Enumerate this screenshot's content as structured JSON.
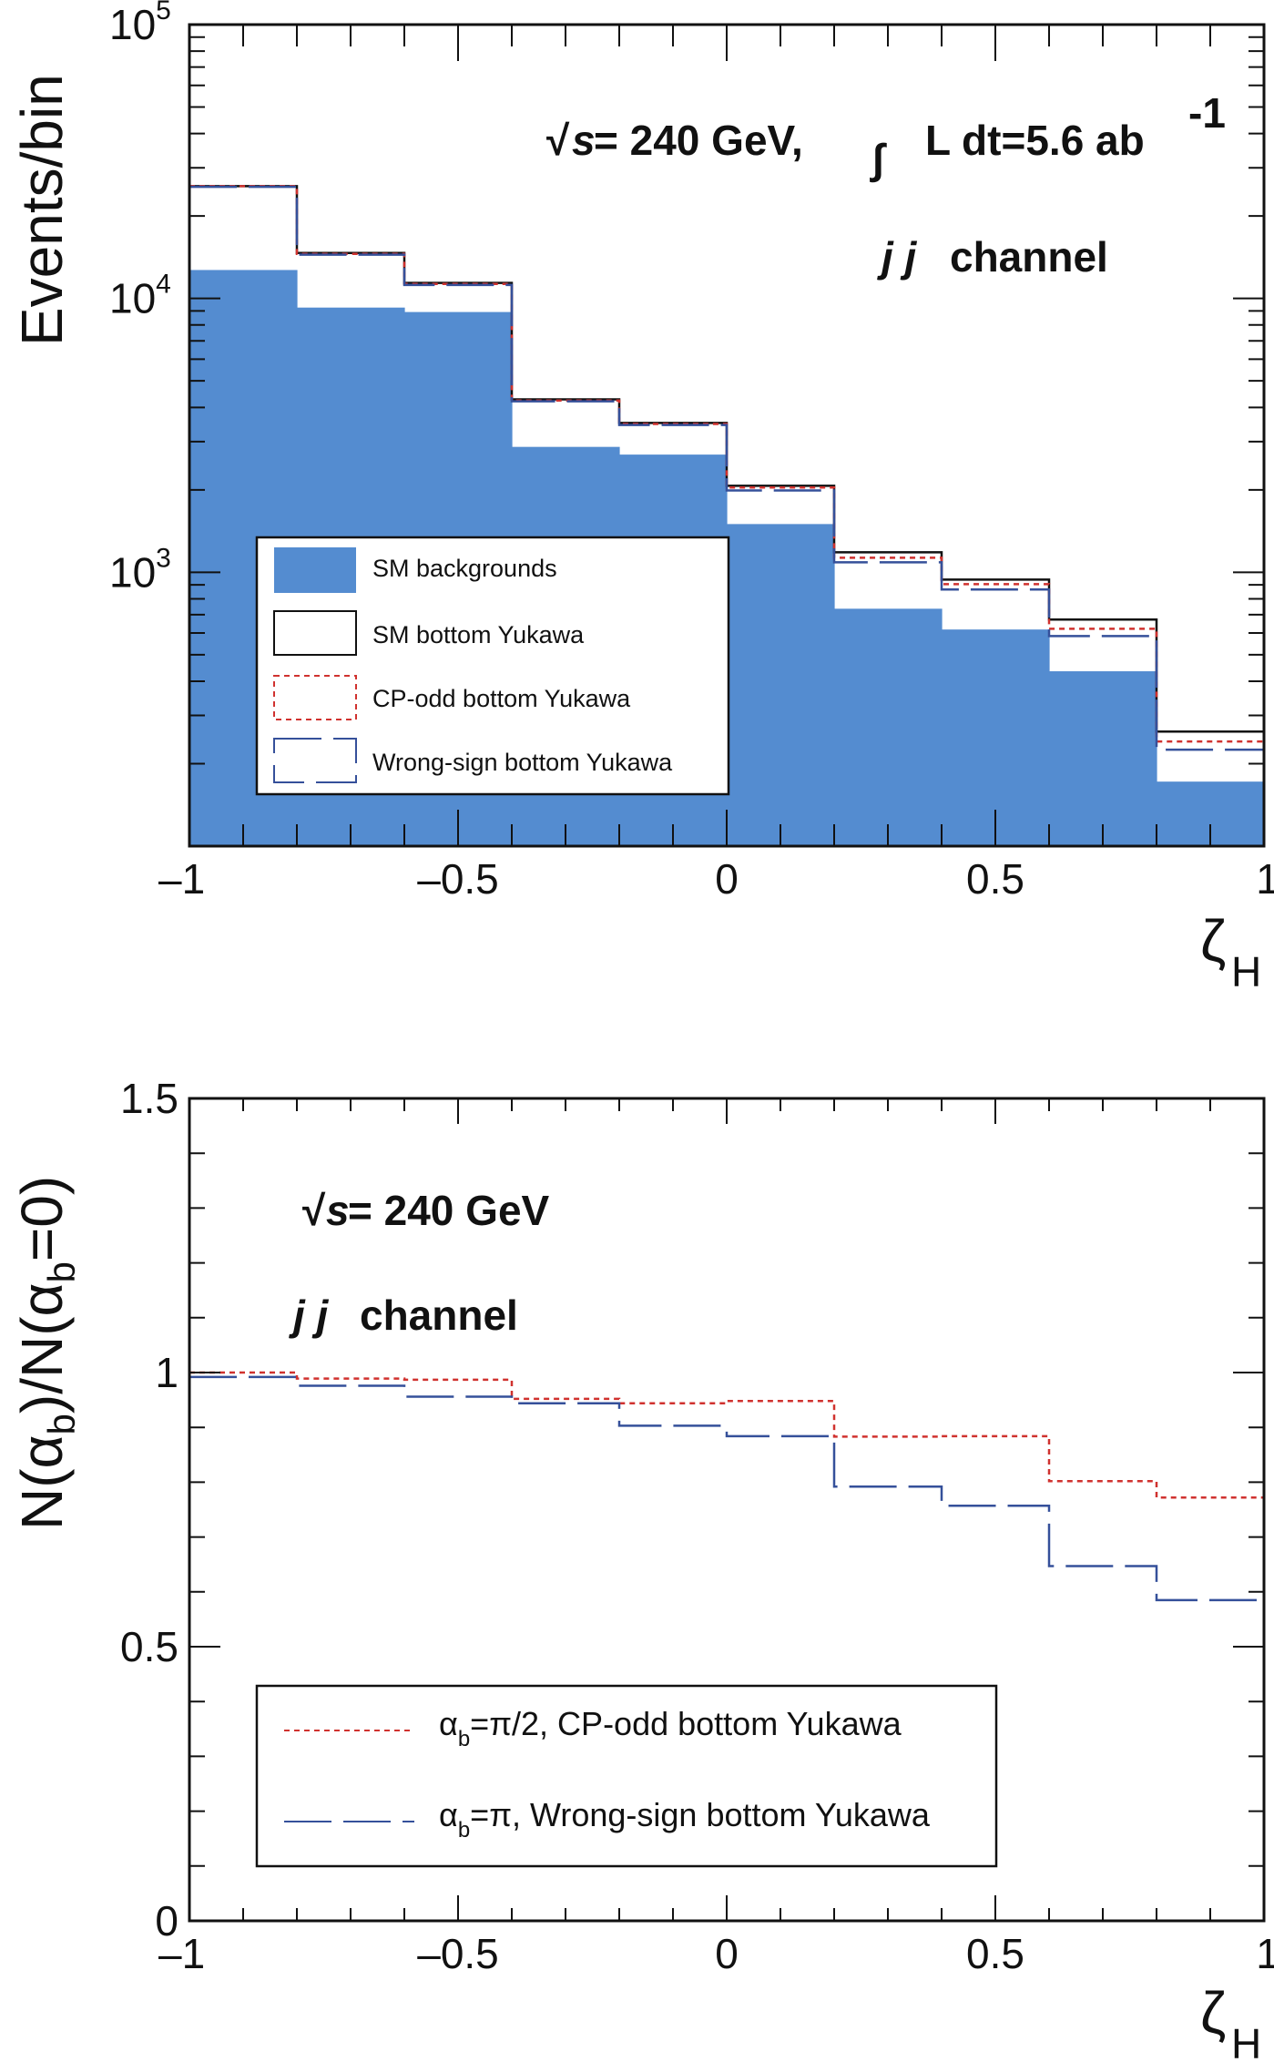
{
  "colors": {
    "background_fill": "#548cd0",
    "sm": "#111111",
    "cp_odd": "#d0322f",
    "wrong_sign": "#35509a"
  },
  "chart_data": [
    {
      "type": "bar",
      "subtype": "histogram",
      "title": "",
      "xlabel": "ζ",
      "xlabel_sub": "H",
      "ylabel": "Events/bin",
      "yscale": "log",
      "xlim": [
        -1,
        1
      ],
      "ylim": [
        100,
        100000
      ],
      "bin_edges": [
        -1,
        -0.8,
        -0.6,
        -0.4,
        -0.2,
        0,
        0.2,
        0.4,
        0.6,
        0.8,
        1
      ],
      "x_tick_labels": [
        "–1",
        "–0.5",
        "0",
        "0.5",
        "1"
      ],
      "x_tick_values": [
        -1,
        -0.5,
        0,
        0.5,
        1
      ],
      "y_tick_labels": [
        {
          "base": "10",
          "exp": "3",
          "value": 1000
        },
        {
          "base": "10",
          "exp": "4",
          "value": 10000
        },
        {
          "base": "10",
          "exp": "5",
          "value": 100000
        }
      ],
      "annotations": {
        "energy": "√s = 240 GeV,",
        "sqrt": "√",
        "s": "s",
        "energy_rest": " = 240 GeV,",
        "integral": "∫",
        "lumi": "L dt=5.6 ab",
        "lumi_exp": "-1",
        "channel_jj": "j j",
        "channel_word": "channel"
      },
      "legend_position": "bottom-left",
      "series": [
        {
          "name": "SM backgrounds",
          "style": "filled",
          "values": [
            12700,
            9260,
            8920,
            2870,
            2690,
            1500,
            736,
            618,
            435,
            172
          ]
        },
        {
          "name": "SM bottom Yukawa",
          "style": "solid",
          "values": [
            25700,
            14650,
            11390,
            4280,
            3510,
            2070,
            1183,
            940,
            672,
            262
          ]
        },
        {
          "name": "CP-odd bottom Yukawa",
          "style": "dotted",
          "values": [
            25700,
            14550,
            11300,
            4240,
            3480,
            2040,
            1130,
            905,
            622,
            241
          ]
        },
        {
          "name": "Wrong-sign bottom Yukawa",
          "style": "dashed",
          "values": [
            25550,
            14450,
            11200,
            4210,
            3450,
            1990,
            1088,
            865,
            585,
            225
          ]
        }
      ]
    },
    {
      "type": "line",
      "subtype": "step",
      "title": "",
      "xlabel": "ζ",
      "xlabel_sub": "H",
      "ylabel": "N(α_b)/N(α_b=0)",
      "ylabel_parts": [
        "N(α",
        "b",
        ")/N(α",
        "b",
        "=0)"
      ],
      "xlim": [
        -1,
        1
      ],
      "ylim": [
        0,
        1.5
      ],
      "bin_edges": [
        -1,
        -0.8,
        -0.6,
        -0.4,
        -0.2,
        0,
        0.2,
        0.4,
        0.6,
        0.8,
        1
      ],
      "x_tick_labels": [
        "–1",
        "–0.5",
        "0",
        "0.5",
        "1"
      ],
      "x_tick_values": [
        -1,
        -0.5,
        0,
        0.5,
        1
      ],
      "y_tick_labels": [
        "0",
        "0.5",
        "1",
        "1.5"
      ],
      "y_tick_values": [
        0,
        0.5,
        1,
        1.5
      ],
      "annotations": {
        "sqrt": "√",
        "s": "s",
        "energy_rest": " = 240 GeV",
        "channel_jj": "j j",
        "channel_word": "channel"
      },
      "legend_position": "bottom-center",
      "series": [
        {
          "name": "α_b=π/2, CP-odd bottom Yukawa",
          "label_alpha": "α",
          "label_sub": "b",
          "label_rest": "=π/2, CP-odd bottom Yukawa",
          "style": "dotted",
          "values": [
            1.0,
            0.989,
            0.987,
            0.952,
            0.944,
            0.948,
            0.883,
            0.884,
            0.802,
            0.772
          ]
        },
        {
          "name": "α_b=π, Wrong-sign bottom Yukawa",
          "label_alpha": "α",
          "label_sub": "b",
          "label_rest": "=π, Wrong-sign bottom Yukawa",
          "style": "dashed",
          "values": [
            0.992,
            0.976,
            0.956,
            0.944,
            0.903,
            0.884,
            0.792,
            0.757,
            0.647,
            0.585
          ]
        }
      ]
    }
  ]
}
